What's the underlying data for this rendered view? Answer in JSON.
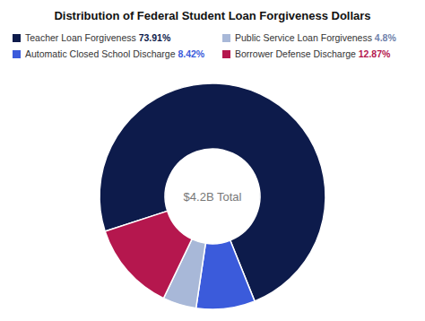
{
  "chart_data": {
    "type": "donut",
    "title": "Distribution of Federal Student Loan Forgiveness Dollars",
    "annotations": [
      "$4.2B Total"
    ],
    "categories": [
      "Teacher Loan Forgiveness",
      "Automatic Closed School Discharge",
      "Public Service Loan Forgiveness",
      "Borrower Defense Discharge"
    ],
    "values": [
      73.91,
      8.42,
      4.8,
      12.87
    ],
    "value_labels": [
      "73.91%",
      "8.42%",
      "4.8%",
      "12.87%"
    ],
    "colors": [
      "#0d1b4b",
      "#3b5bdb",
      "#a8b8d8",
      "#b5174e"
    ],
    "data_labels": true
  }
}
